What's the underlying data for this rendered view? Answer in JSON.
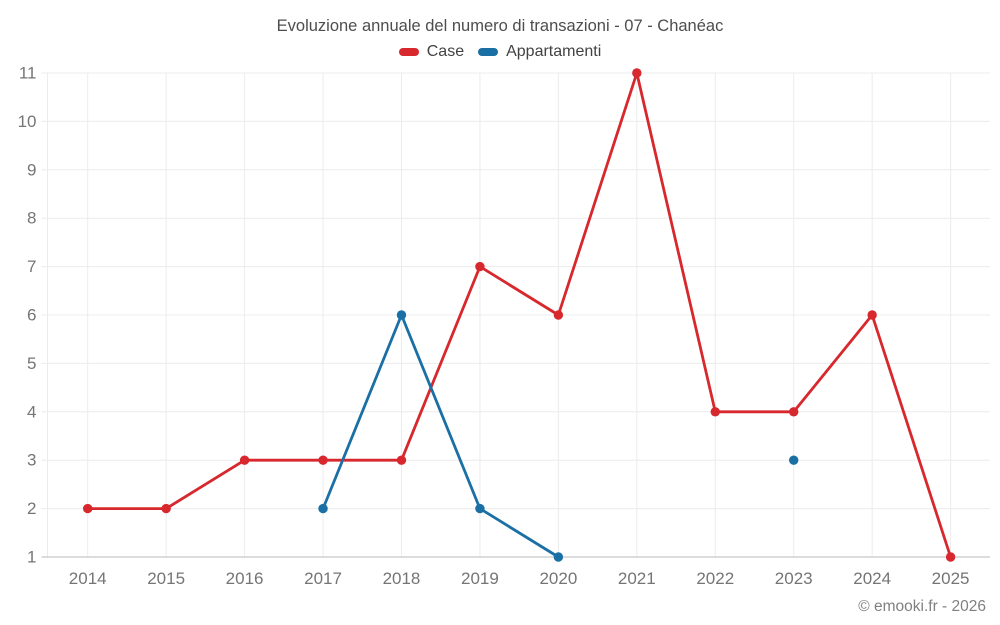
{
  "title": "Evoluzione annuale del numero di transazioni - 07 - Chanéac",
  "attribution": "© emooki.fr - 2026",
  "colors": {
    "case_red": "#d7282d",
    "appartamenti_blue": "#1a6fa5",
    "grid": "#ececec",
    "axis_line": "#c6c6c6",
    "tick_label": "#757575",
    "title_text": "#4d4d4d",
    "legend_text": "#424242",
    "background": "#ffffff"
  },
  "chart_data": {
    "type": "line",
    "title": "Evoluzione annuale del numero di transazioni - 07 - Chanéac",
    "x": [
      2014,
      2015,
      2016,
      2017,
      2018,
      2019,
      2020,
      2021,
      2022,
      2023,
      2024,
      2025
    ],
    "series": [
      {
        "name": "Case",
        "color": "#d7282d",
        "values": [
          2,
          2,
          3,
          3,
          3,
          7,
          6,
          11,
          4,
          4,
          6,
          1
        ]
      },
      {
        "name": "Appartamenti",
        "color": "#1a6fa5",
        "values": [
          null,
          null,
          null,
          2,
          6,
          2,
          1,
          null,
          null,
          3,
          null,
          null
        ]
      }
    ],
    "xlabel": "",
    "ylabel": "",
    "ylim": [
      1,
      11
    ],
    "yticks": [
      1,
      2,
      3,
      4,
      5,
      6,
      7,
      8,
      9,
      10,
      11
    ],
    "grid": true,
    "legend_position": "top",
    "marker": "circle"
  }
}
